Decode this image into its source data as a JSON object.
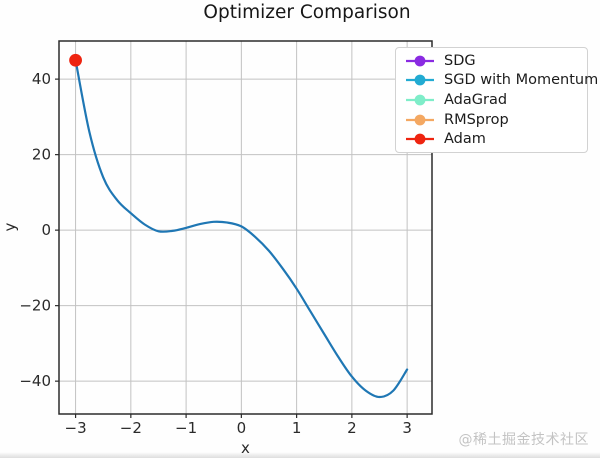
{
  "chart_data": {
    "type": "line",
    "title": "Optimizer Comparison",
    "xlabel": "x",
    "ylabel": "y",
    "xlim": [
      -3.3,
      3.45
    ],
    "ylim": [
      -48.7,
      50.1
    ],
    "x_ticks": [
      -3,
      -2,
      -1,
      0,
      1,
      2,
      3
    ],
    "y_ticks": [
      40,
      20,
      0,
      -20,
      -40
    ],
    "grid": true,
    "grid_color": "#c2c2c2",
    "axis_color": "#2b2b2b",
    "tick_label_color": "#2a2a2a",
    "legend_position": "upper right",
    "legend": [
      {
        "label": "SDG",
        "color": "#8a2be2"
      },
      {
        "label": "SGD with Momentum",
        "color": "#22abd2"
      },
      {
        "label": "AdaGrad",
        "color": "#7fedc9"
      },
      {
        "label": "RMSprop",
        "color": "#f4a862"
      },
      {
        "label": "Adam",
        "color": "#ee2410"
      }
    ],
    "curve": {
      "name": "loss-function-curve",
      "color": "#1f77b4",
      "points": [
        [
          -3,
          45
        ],
        [
          -2.75,
          26
        ],
        [
          -2.5,
          14
        ],
        [
          -2.25,
          8
        ],
        [
          -2,
          4.5
        ],
        [
          -1.75,
          1.5
        ],
        [
          -1.5,
          -0.3
        ],
        [
          -1.25,
          -0.2
        ],
        [
          -1,
          0.6
        ],
        [
          -0.75,
          1.6
        ],
        [
          -0.5,
          2.2
        ],
        [
          -0.25,
          2.0
        ],
        [
          0,
          1.0
        ],
        [
          0.25,
          -1.8
        ],
        [
          0.5,
          -5.5
        ],
        [
          0.75,
          -10.2
        ],
        [
          1,
          -15.5
        ],
        [
          1.25,
          -21.5
        ],
        [
          1.5,
          -27.5
        ],
        [
          1.75,
          -33.5
        ],
        [
          2,
          -38.8
        ],
        [
          2.25,
          -42.5
        ],
        [
          2.5,
          -44.2
        ],
        [
          2.75,
          -42.5
        ],
        [
          3,
          -36.9
        ]
      ]
    },
    "markers": [
      {
        "name": "optimizer-start-point",
        "series": "Adam",
        "x": -3,
        "y": 45,
        "color": "#ee2410",
        "radius_px": 6.4
      }
    ]
  },
  "watermark": {
    "text": "@稀土掘金技术社区"
  }
}
